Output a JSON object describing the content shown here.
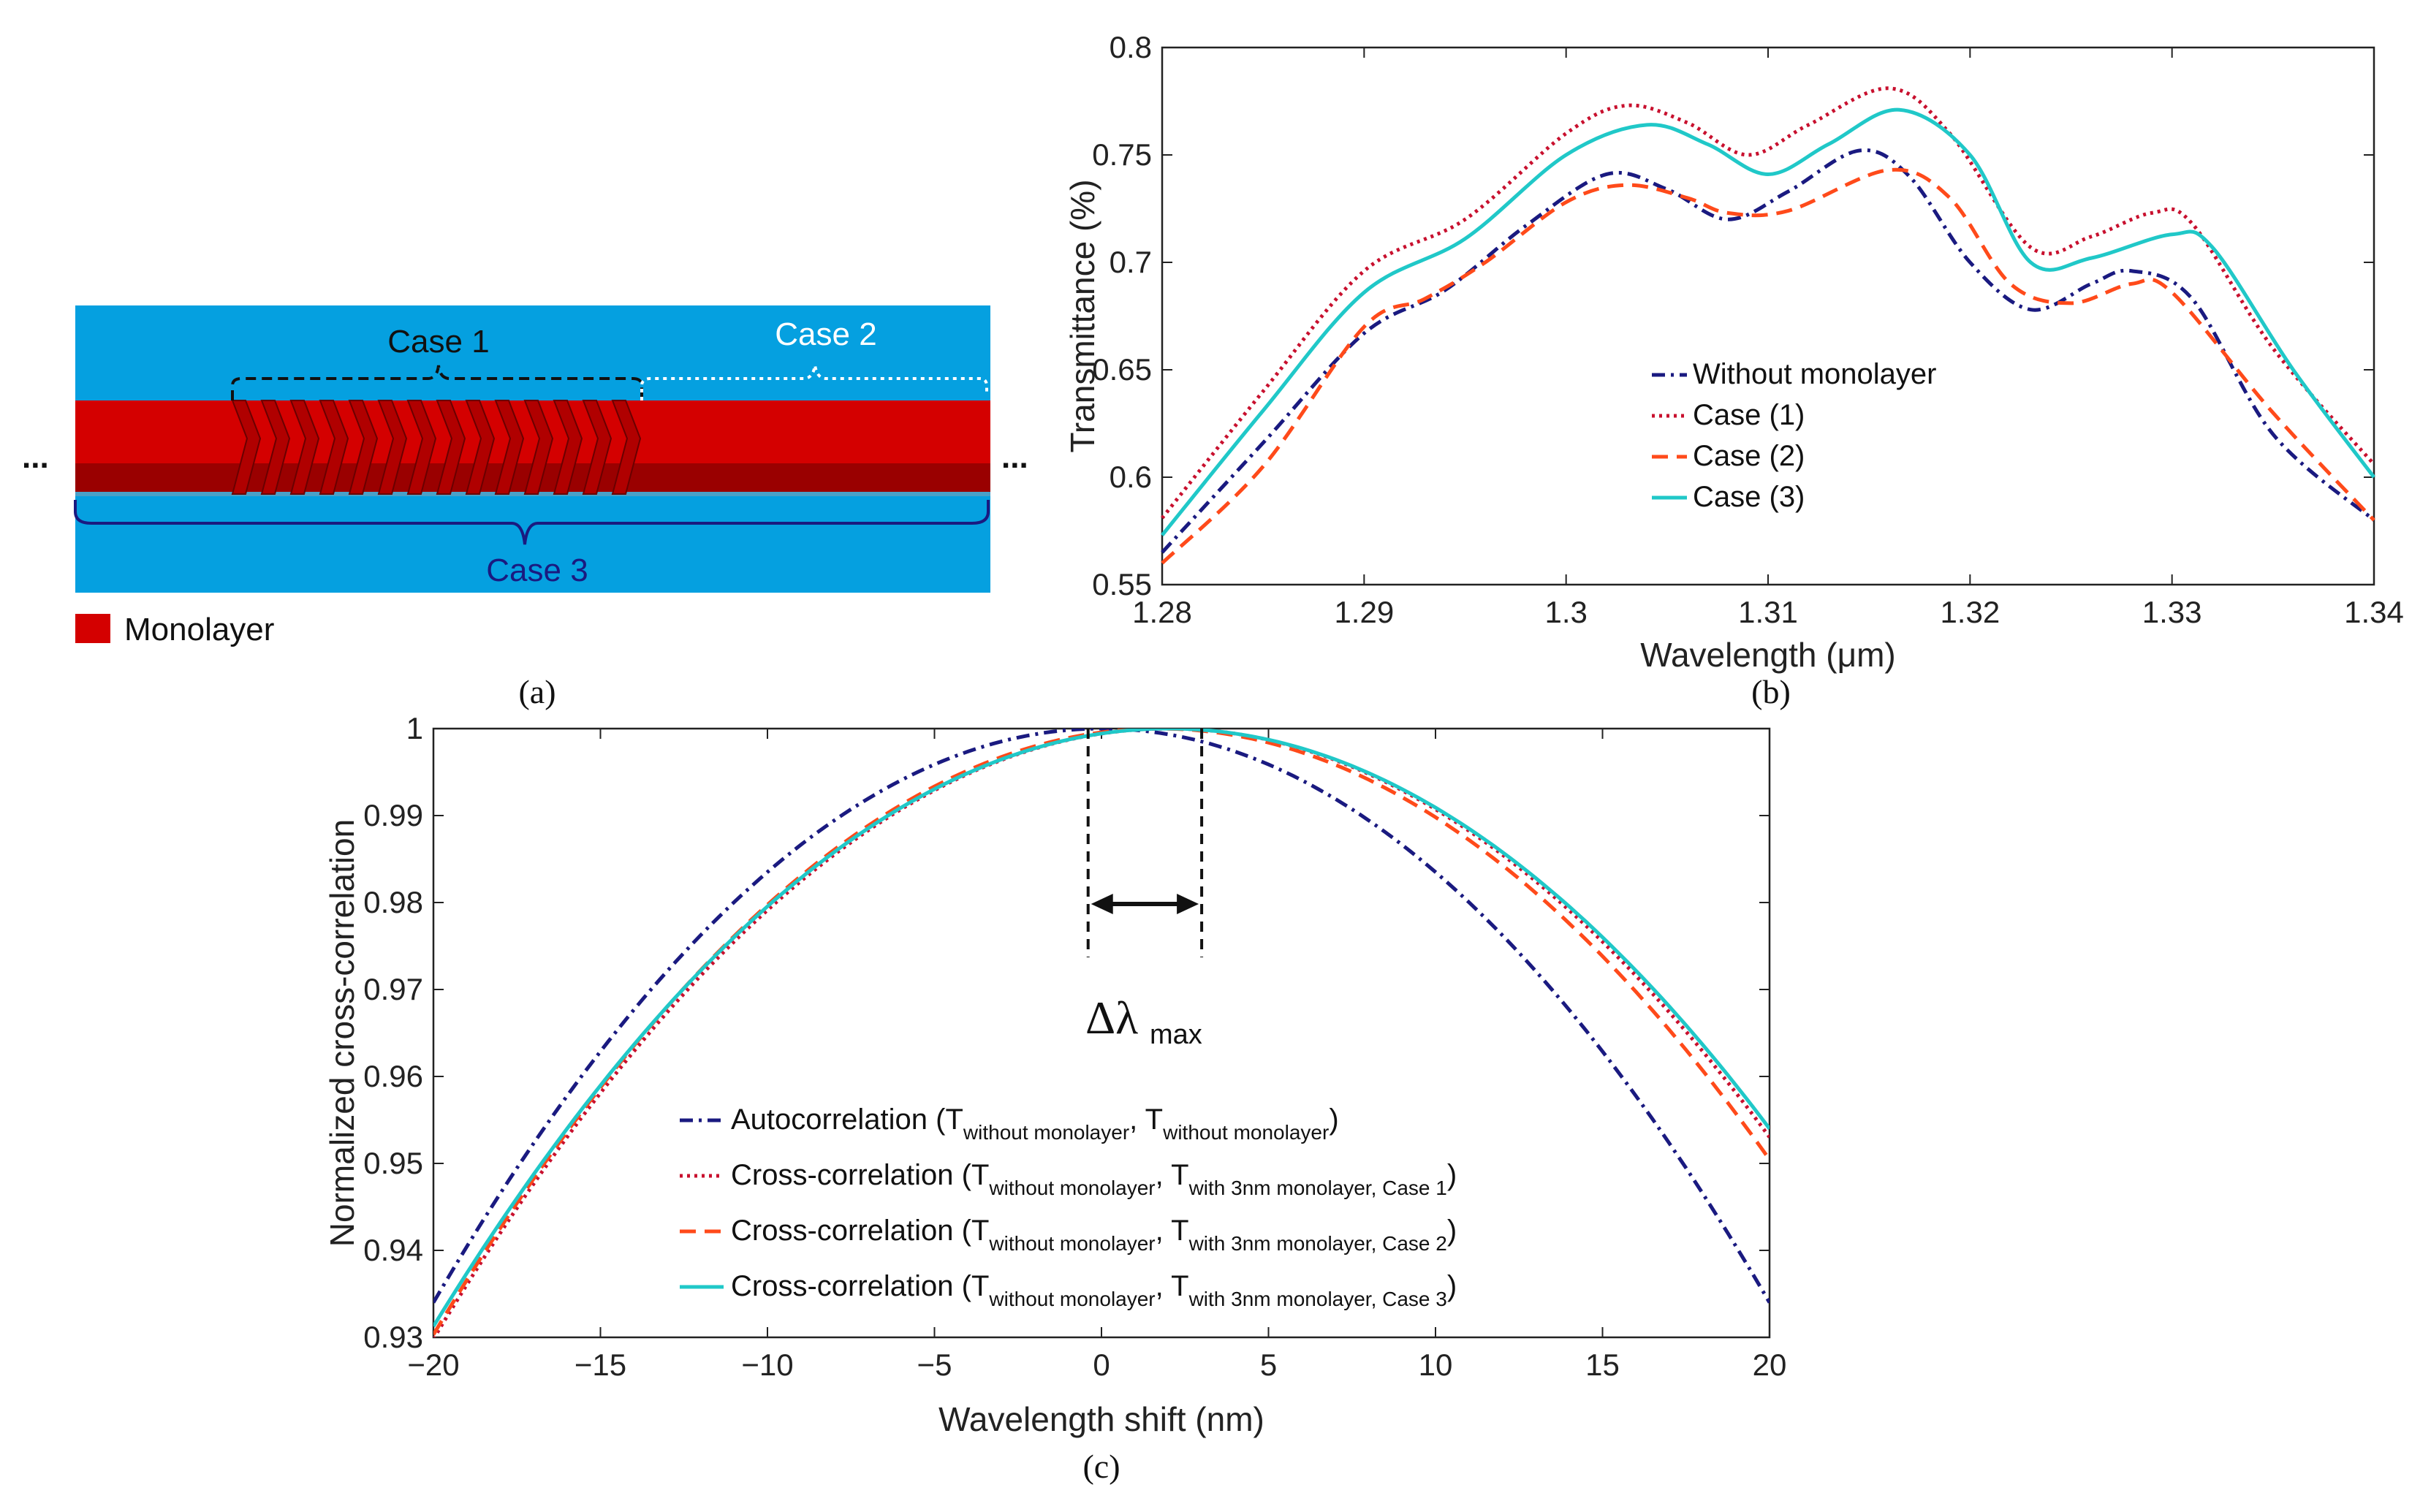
{
  "panel_a": {
    "label": "(a)",
    "case1": "Case 1",
    "case2": "Case 2",
    "case3": "Case 3",
    "legend": "Monolayer",
    "ellipsis": "...",
    "colors": {
      "background": "#05a0e0",
      "waveguide": "#d40000",
      "waveguide_dark": "#9a0000"
    }
  },
  "chart_data": [
    {
      "id": "b",
      "panel_label": "(b)",
      "type": "line",
      "title": "",
      "xlabel": "Wavelength (μm)",
      "ylabel": "Transmittance (%)",
      "xlim": [
        1.28,
        1.34
      ],
      "ylim": [
        0.55,
        0.8
      ],
      "xticks": [
        1.28,
        1.29,
        1.3,
        1.31,
        1.32,
        1.33,
        1.34
      ],
      "xtick_labels": [
        "1.28",
        "1.29",
        "1.3",
        "1.31",
        "1.32",
        "1.33",
        "1.34"
      ],
      "yticks": [
        0.55,
        0.6,
        0.65,
        0.7,
        0.75,
        0.8
      ],
      "ytick_labels": [
        "0.55",
        "0.6",
        "0.65",
        "0.7",
        "0.75",
        "0.8"
      ],
      "legend_position": "center",
      "series": [
        {
          "name": "Without monolayer",
          "color": "#1a1a80",
          "dash": "dashdot",
          "points": [
            [
              1.28,
              0.565
            ],
            [
              1.285,
              0.616
            ],
            [
              1.29,
              0.667
            ],
            [
              1.294,
              0.687
            ],
            [
              1.298,
              0.717
            ],
            [
              1.302,
              0.741
            ],
            [
              1.305,
              0.734
            ],
            [
              1.308,
              0.72
            ],
            [
              1.311,
              0.733
            ],
            [
              1.3145,
              0.752
            ],
            [
              1.317,
              0.74
            ],
            [
              1.32,
              0.7
            ],
            [
              1.323,
              0.678
            ],
            [
              1.326,
              0.69
            ],
            [
              1.328,
              0.696
            ],
            [
              1.331,
              0.683
            ],
            [
              1.335,
              0.62
            ],
            [
              1.34,
              0.58
            ]
          ]
        },
        {
          "name": "Case (1)",
          "color": "#c8102e",
          "dash": "dotted",
          "points": [
            [
              1.28,
              0.581
            ],
            [
              1.285,
              0.64
            ],
            [
              1.29,
              0.696
            ],
            [
              1.295,
              0.72
            ],
            [
              1.3,
              0.76
            ],
            [
              1.303,
              0.773
            ],
            [
              1.306,
              0.765
            ],
            [
              1.309,
              0.75
            ],
            [
              1.312,
              0.764
            ],
            [
              1.316,
              0.781
            ],
            [
              1.319,
              0.76
            ],
            [
              1.323,
              0.707
            ],
            [
              1.326,
              0.712
            ],
            [
              1.329,
              0.723
            ],
            [
              1.331,
              0.718
            ],
            [
              1.335,
              0.66
            ],
            [
              1.34,
              0.606
            ]
          ]
        },
        {
          "name": "Case (2)",
          "color": "#ff4a1a",
          "dash": "dashed",
          "points": [
            [
              1.28,
              0.56
            ],
            [
              1.285,
              0.605
            ],
            [
              1.29,
              0.67
            ],
            [
              1.293,
              0.683
            ],
            [
              1.296,
              0.7
            ],
            [
              1.3,
              0.728
            ],
            [
              1.303,
              0.736
            ],
            [
              1.306,
              0.73
            ],
            [
              1.308,
              0.723
            ],
            [
              1.311,
              0.724
            ],
            [
              1.316,
              0.743
            ],
            [
              1.319,
              0.73
            ],
            [
              1.322,
              0.69
            ],
            [
              1.325,
              0.681
            ],
            [
              1.328,
              0.69
            ],
            [
              1.33,
              0.686
            ],
            [
              1.335,
              0.63
            ],
            [
              1.34,
              0.58
            ]
          ]
        },
        {
          "name": "Case (3)",
          "color": "#20c8c8",
          "dash": "solid",
          "points": [
            [
              1.28,
              0.573
            ],
            [
              1.285,
              0.631
            ],
            [
              1.29,
              0.686
            ],
            [
              1.295,
              0.711
            ],
            [
              1.3,
              0.75
            ],
            [
              1.304,
              0.764
            ],
            [
              1.307,
              0.755
            ],
            [
              1.31,
              0.741
            ],
            [
              1.313,
              0.755
            ],
            [
              1.3165,
              0.771
            ],
            [
              1.32,
              0.75
            ],
            [
              1.323,
              0.7
            ],
            [
              1.326,
              0.702
            ],
            [
              1.33,
              0.713
            ],
            [
              1.332,
              0.707
            ],
            [
              1.336,
              0.65
            ],
            [
              1.34,
              0.6
            ]
          ]
        }
      ]
    },
    {
      "id": "c",
      "panel_label": "(c)",
      "type": "line",
      "title": "",
      "xlabel": "Wavelength shift (nm)",
      "ylabel": "Normalized cross-correlation",
      "xlim": [
        -20,
        20
      ],
      "ylim": [
        0.93,
        1.0
      ],
      "xticks": [
        -20,
        -15,
        -10,
        -5,
        0,
        5,
        10,
        15,
        20
      ],
      "xtick_labels": [
        "−20",
        "−15",
        "−10",
        "−5",
        "0",
        "5",
        "10",
        "15",
        "20"
      ],
      "yticks": [
        0.93,
        0.94,
        0.95,
        0.96,
        0.97,
        0.98,
        0.99,
        1.0
      ],
      "ytick_labels": [
        "0.93",
        "0.94",
        "0.95",
        "0.96",
        "0.97",
        "0.98",
        "0.99",
        "1"
      ],
      "legend_position": "bottom-center",
      "annotation": {
        "label": "Δλ",
        "subscript": "max",
        "x_start": -0.4,
        "x_end": 3.0
      },
      "series": [
        {
          "legend_main": "Autocorrelation (T",
          "legend_sub1": "without monolayer",
          "legend_mid": ", T",
          "legend_sub2": "without monolayer",
          "legend_end": ")",
          "color": "#1a1a80",
          "dash": "dashdot",
          "peak": 0.0,
          "curvature": 0.000165
        },
        {
          "legend_main": "Cross-correlation (T",
          "legend_sub1": "without monolayer",
          "legend_mid": ", T",
          "legend_sub2": "with 3nm monolayer, Case 1",
          "legend_end": ")",
          "color": "#c8102e",
          "dash": "dotted",
          "peak": 2.0,
          "curvature": 0.000145
        },
        {
          "legend_main": "Cross-correlation (T",
          "legend_sub1": "without monolayer",
          "legend_mid": ", T",
          "legend_sub2": "with 3nm monolayer, Case 2",
          "legend_end": ")",
          "color": "#ff4a1a",
          "dash": "dashed",
          "peak": 1.7,
          "curvature": 0.000148
        },
        {
          "legend_main": "Cross-correlation (T",
          "legend_sub1": "without monolayer",
          "legend_mid": ", T",
          "legend_sub2": "with 3nm monolayer, Case 3",
          "legend_end": ")",
          "color": "#20c8c8",
          "dash": "solid",
          "peak": 2.0,
          "curvature": 0.000142
        }
      ]
    }
  ]
}
